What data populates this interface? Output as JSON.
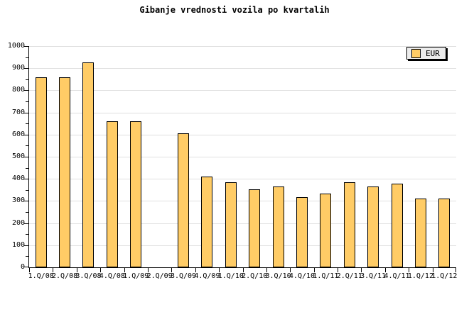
{
  "title": "Gibanje vrednosti vozila po kvartalih",
  "legend": {
    "label": "EUR"
  },
  "chart_data": {
    "type": "bar",
    "title": "Gibanje vrednosti vozila po kvartalih",
    "xlabel": "",
    "ylabel": "",
    "categories": [
      "1.Q/08",
      "2.Q/08",
      "3.Q/08",
      "4.Q/08",
      "1.Q/09",
      "2.Q/09",
      "3.Q/09",
      "4.Q/09",
      "1.Q/10",
      "2.Q/10",
      "3.Q/10",
      "4.Q/10",
      "1.Q/11",
      "2.Q/11",
      "3.Q/11",
      "4.Q/11",
      "1.Q/12",
      "1.Q/12"
    ],
    "series": [
      {
        "name": "EUR",
        "values": [
          860,
          860,
          925,
          660,
          660,
          0,
          607,
          410,
          386,
          352,
          366,
          318,
          334,
          384,
          366,
          378,
          311,
          310
        ]
      }
    ],
    "note": "no bar rendered for 2.Q/09 (value 0)",
    "ylim": [
      0,
      1000
    ],
    "ytick_major_step": 100,
    "ytick_minor_step": 50,
    "grid": "horizontal",
    "legend_position": "top-right",
    "colors": {
      "bar_fill": "#FFCC66",
      "bar_border": "#000000",
      "grid": "#E0E0E0",
      "axis": "#000000",
      "legend_bg": "#ECECEC",
      "legend_shadow": "#000000",
      "background": "#FFFFFF",
      "text": "#000000"
    }
  }
}
